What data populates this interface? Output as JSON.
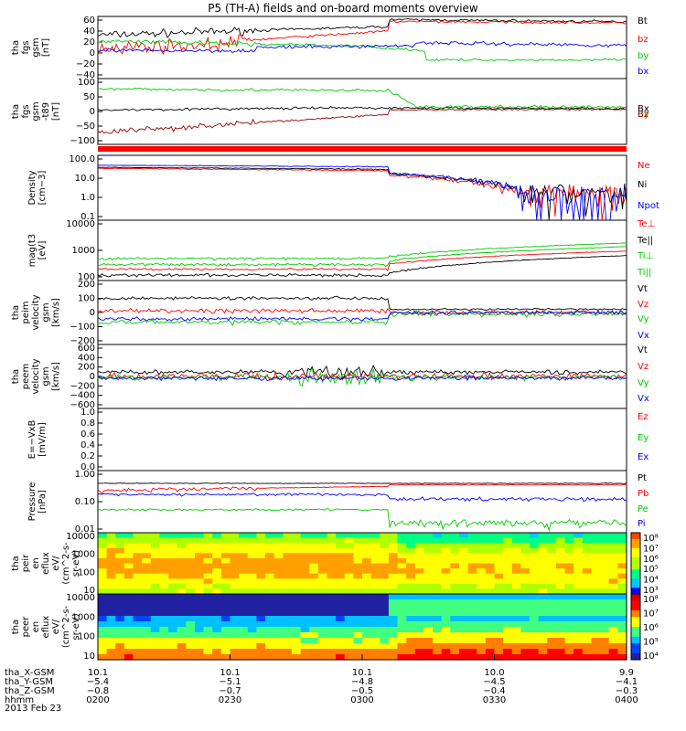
{
  "header": {
    "title": "P5 (TH-A) fields and on-board moments overview"
  },
  "chart_data": [
    {
      "type": "line",
      "id": "fgs",
      "ylabel": [
        "tha",
        "fgs",
        "gsm",
        "[nT]"
      ],
      "ylim": [
        -40,
        60
      ],
      "yticks": [
        "60",
        "40",
        "20",
        "0",
        "−20",
        "−40"
      ],
      "series": [
        {
          "name": "Bt",
          "color": "#000000"
        },
        {
          "name": "bz",
          "color": "#ff0000"
        },
        {
          "name": "by",
          "color": "#00cc00"
        },
        {
          "name": "bx",
          "color": "#0000ff"
        }
      ]
    },
    {
      "type": "line",
      "id": "fgs_t89",
      "ylabel": [
        "tha",
        "fgs",
        "gsm",
        "-t89",
        "[nT]"
      ],
      "ylim": [
        -120,
        100
      ],
      "yticks": [
        "100",
        "50",
        "0",
        "−50",
        "−100"
      ],
      "series": [
        {
          "name": "Bx",
          "color": "#000000"
        },
        {
          "name": "By",
          "color": "#00cc00"
        },
        {
          "name": "Bz",
          "color": "#990000"
        }
      ]
    },
    {
      "type": "line",
      "id": "density",
      "log": true,
      "ylabel": [
        "Density",
        "[cm−3]"
      ],
      "ylim": [
        0.1,
        100
      ],
      "yticks": [
        "100.0",
        "10.0",
        "1.0",
        "0.1"
      ],
      "series": [
        {
          "name": "Ne",
          "color": "#ff0000"
        },
        {
          "name": "Ni",
          "color": "#000000"
        },
        {
          "name": "Npot",
          "color": "#0000ff"
        }
      ]
    },
    {
      "type": "line",
      "id": "temp",
      "log": true,
      "ylabel": [
        "mag(t3",
        "[eV]"
      ],
      "ylim": [
        30,
        10000
      ],
      "yticks": [
        "10000",
        "1000",
        "100"
      ],
      "series": [
        {
          "name": "Te⊥",
          "color": "#ff0000"
        },
        {
          "name": "Te||",
          "color": "#000000"
        },
        {
          "name": "Ti⊥",
          "color": "#00cc00"
        },
        {
          "name": "Ti||",
          "color": "#00cc00"
        }
      ]
    },
    {
      "type": "line",
      "id": "peim",
      "ylabel": [
        "tha",
        "peim",
        "velocity",
        "gsm",
        "[km/s]"
      ],
      "ylim": [
        -200,
        200
      ],
      "yticks": [
        "200",
        "100",
        "0",
        "−100",
        "−200"
      ],
      "series": [
        {
          "name": "Vt",
          "color": "#000000"
        },
        {
          "name": "Vz",
          "color": "#ff0000"
        },
        {
          "name": "Vy",
          "color": "#00cc00"
        },
        {
          "name": "Vx",
          "color": "#0000ff"
        }
      ]
    },
    {
      "type": "line",
      "id": "peem",
      "ylabel": [
        "tha",
        "peem",
        "velocity",
        "gsm",
        "[km/s]"
      ],
      "ylim": [
        -600,
        600
      ],
      "yticks": [
        "600",
        "400",
        "200",
        "0",
        "−200",
        "−400",
        "−600"
      ],
      "series": [
        {
          "name": "Vt",
          "color": "#000000"
        },
        {
          "name": "Vz",
          "color": "#ff0000"
        },
        {
          "name": "Vy",
          "color": "#00cc00"
        },
        {
          "name": "Vx",
          "color": "#0000ff"
        }
      ]
    },
    {
      "type": "line",
      "id": "efield",
      "ylabel": [
        "E=−VxB",
        "[mV/m]"
      ],
      "ylim": [
        0,
        1
      ],
      "yticks": [
        "1.0",
        "0.8",
        "0.6",
        "0.4",
        "0.2",
        "0.0"
      ],
      "series": [
        {
          "name": "Ez",
          "color": "#ff0000"
        },
        {
          "name": "Ey",
          "color": "#00cc00"
        },
        {
          "name": "Ex",
          "color": "#0000ff"
        }
      ]
    },
    {
      "type": "line",
      "id": "pressure",
      "log": true,
      "ylabel": [
        "Pressure",
        "[nPa]"
      ],
      "ylim": [
        0.007,
        5
      ],
      "yticks": [
        "1.00",
        "0.10",
        "0.01"
      ],
      "series": [
        {
          "name": "Pt",
          "color": "#000000"
        },
        {
          "name": "Pb",
          "color": "#ff0000"
        },
        {
          "name": "Pe",
          "color": "#00cc00"
        },
        {
          "name": "Pi",
          "color": "#0000ff"
        }
      ]
    },
    {
      "type": "heatmap",
      "id": "peir",
      "ylabel": [
        "tha",
        "peir",
        "en",
        "eflux",
        "eV/",
        "(cm^2-s-",
        "sr-eV)"
      ],
      "yticks": [
        "10000",
        "1000",
        "100",
        "10"
      ],
      "colorbar": [
        "10⁸",
        "10⁷",
        "10⁶",
        "10⁵",
        "10⁴",
        "10³"
      ]
    },
    {
      "type": "heatmap",
      "id": "peer",
      "ylabel": [
        "tha",
        "peer",
        "en",
        "eflux",
        "eV/",
        "(cm^2-s-",
        "sr-eV)"
      ],
      "yticks": [
        "10000",
        "1000",
        "100",
        "10"
      ],
      "colorbar": [
        "10⁸",
        "10⁷",
        "10⁶",
        "10⁵",
        "10⁴"
      ]
    }
  ],
  "xaxis": {
    "rows": [
      {
        "label": "tha_X-GSM",
        "values": [
          "10.1",
          "10.1",
          "10.1",
          "10.0",
          "9.9"
        ]
      },
      {
        "label": "tha_Y-GSM",
        "values": [
          "−5.4",
          "−5.1",
          "−4.8",
          "−4.5",
          "−4.1"
        ]
      },
      {
        "label": "tha_Z-GSM",
        "values": [
          "−0.8",
          "−0.7",
          "−0.5",
          "−0.4",
          "−0.3"
        ]
      },
      {
        "label": "hhmm",
        "values": [
          "0200",
          "0230",
          "0300",
          "0330",
          "0400"
        ]
      }
    ],
    "date": "2013 Feb 23"
  }
}
